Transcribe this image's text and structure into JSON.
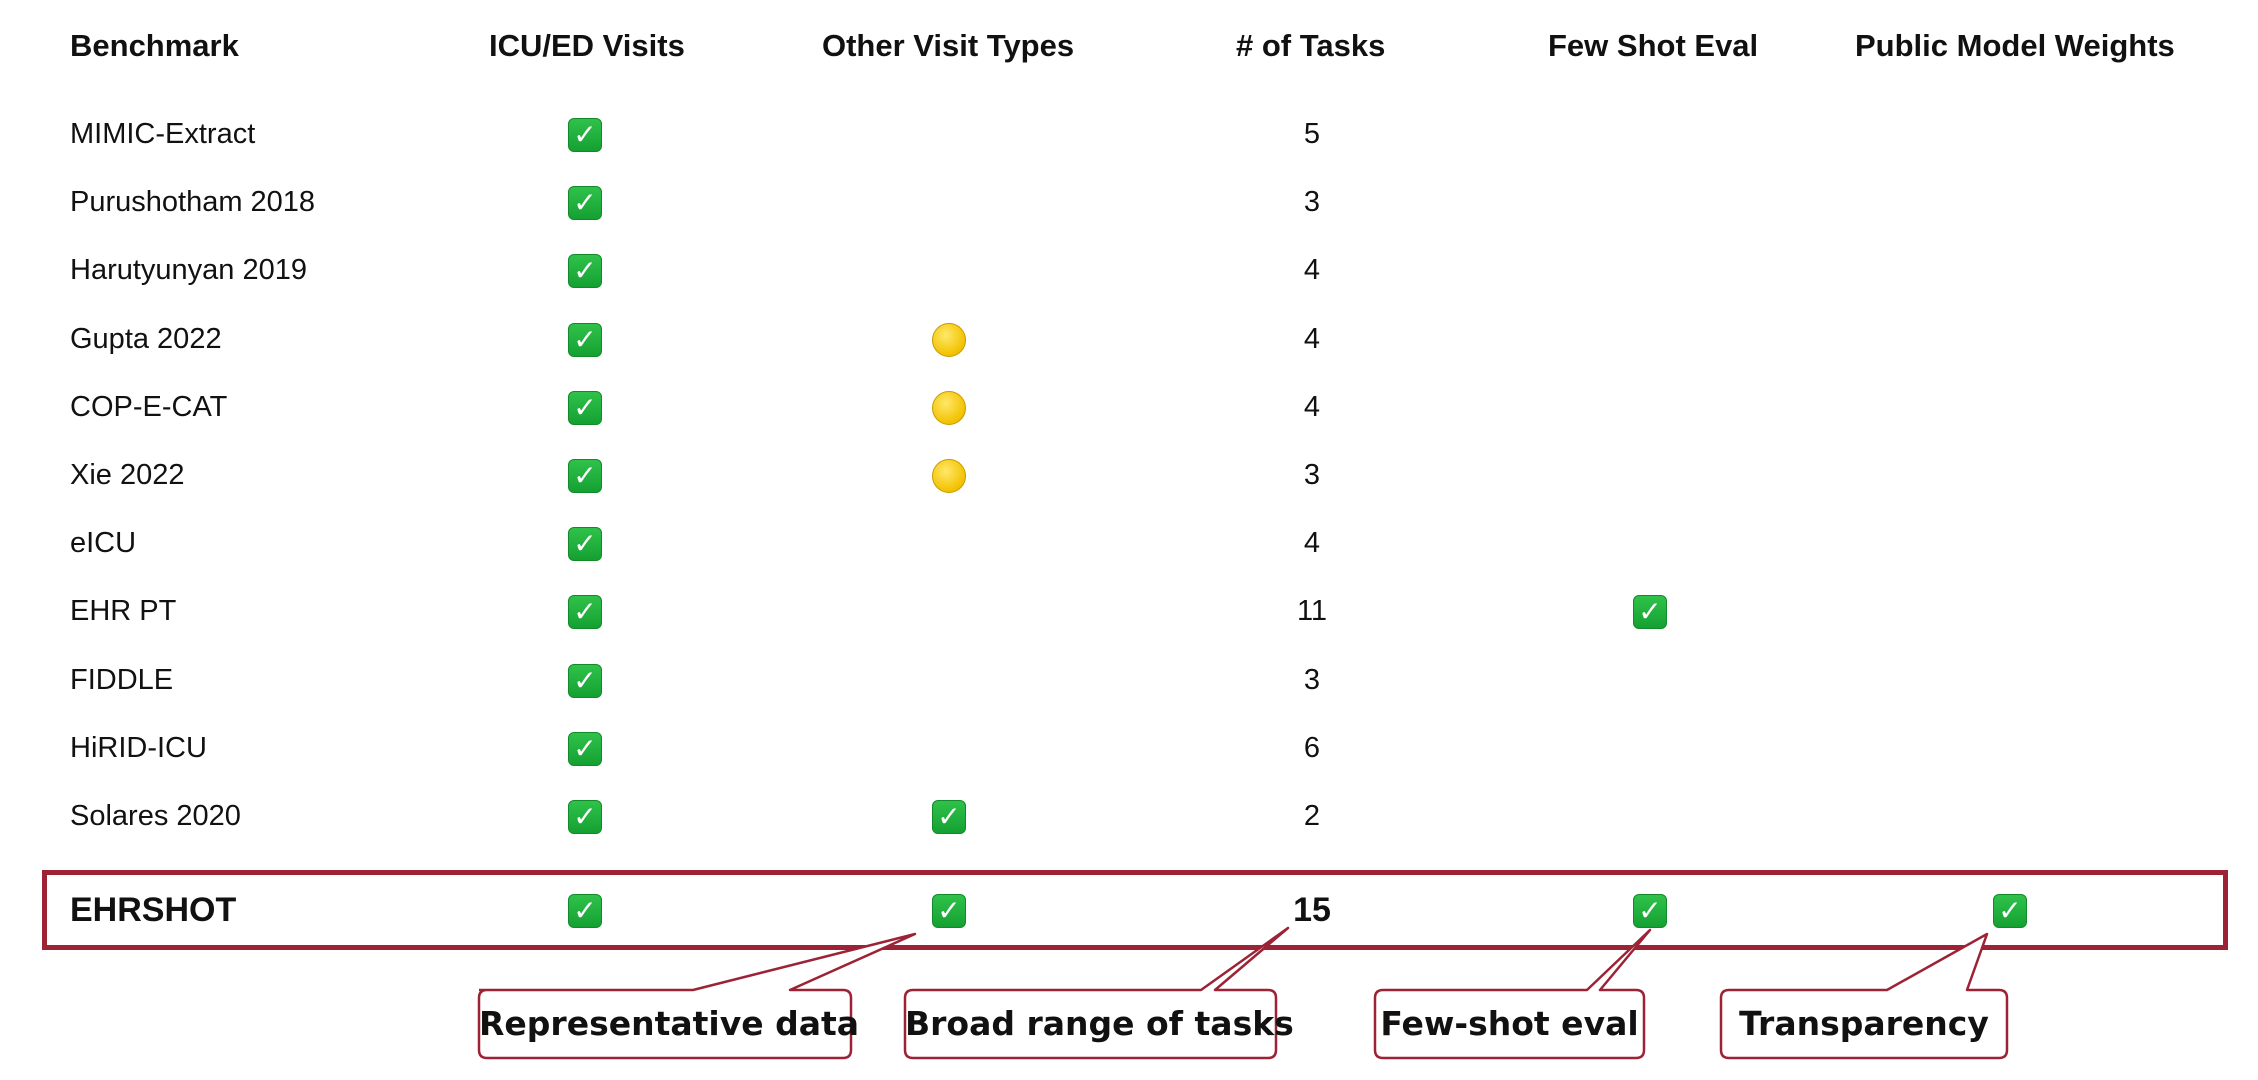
{
  "headers": {
    "benchmark": "Benchmark",
    "icu_ed": "ICU/ED Visits",
    "other_visit": "Other Visit Types",
    "num_tasks": "# of Tasks",
    "few_shot": "Few Shot Eval",
    "public_weights": "Public Model Weights"
  },
  "rows": [
    {
      "name": "MIMIC-Extract",
      "icu_ed": "check",
      "other_visit": "",
      "tasks": "5",
      "few_shot": "",
      "public_weights": ""
    },
    {
      "name": "Purushotham 2018",
      "icu_ed": "check",
      "other_visit": "",
      "tasks": "3",
      "few_shot": "",
      "public_weights": ""
    },
    {
      "name": "Harutyunyan 2019",
      "icu_ed": "check",
      "other_visit": "",
      "tasks": "4",
      "few_shot": "",
      "public_weights": ""
    },
    {
      "name": "Gupta 2022",
      "icu_ed": "check",
      "other_visit": "partial",
      "tasks": "4",
      "few_shot": "",
      "public_weights": ""
    },
    {
      "name": "COP-E-CAT",
      "icu_ed": "check",
      "other_visit": "partial",
      "tasks": "4",
      "few_shot": "",
      "public_weights": ""
    },
    {
      "name": "Xie 2022",
      "icu_ed": "check",
      "other_visit": "partial",
      "tasks": "3",
      "few_shot": "",
      "public_weights": ""
    },
    {
      "name": "eICU",
      "icu_ed": "check",
      "other_visit": "",
      "tasks": "4",
      "few_shot": "",
      "public_weights": ""
    },
    {
      "name": "EHR PT",
      "icu_ed": "check",
      "other_visit": "",
      "tasks": "11",
      "few_shot": "check",
      "public_weights": ""
    },
    {
      "name": "FIDDLE",
      "icu_ed": "check",
      "other_visit": "",
      "tasks": "3",
      "few_shot": "",
      "public_weights": ""
    },
    {
      "name": "HiRID-ICU",
      "icu_ed": "check",
      "other_visit": "",
      "tasks": "6",
      "few_shot": "",
      "public_weights": ""
    },
    {
      "name": "Solares 2020",
      "icu_ed": "check",
      "other_visit": "check",
      "tasks": "2",
      "few_shot": "",
      "public_weights": ""
    }
  ],
  "highlight_row": {
    "name": "EHRSHOT",
    "icu_ed": "check",
    "other_visit": "check",
    "tasks": "15",
    "few_shot": "check",
    "public_weights": "check"
  },
  "callouts": {
    "representative": "Representative data",
    "broad_range": "Broad range of tasks",
    "few_shot": "Few-shot eval",
    "transparency": "Transparency"
  },
  "colors": {
    "highlight_border": "#9b2335",
    "check_green": "#15a032",
    "partial_yellow": "#f2c200"
  },
  "icons": {
    "check": "white-check-mark-icon",
    "partial": "yellow-circle-icon"
  }
}
